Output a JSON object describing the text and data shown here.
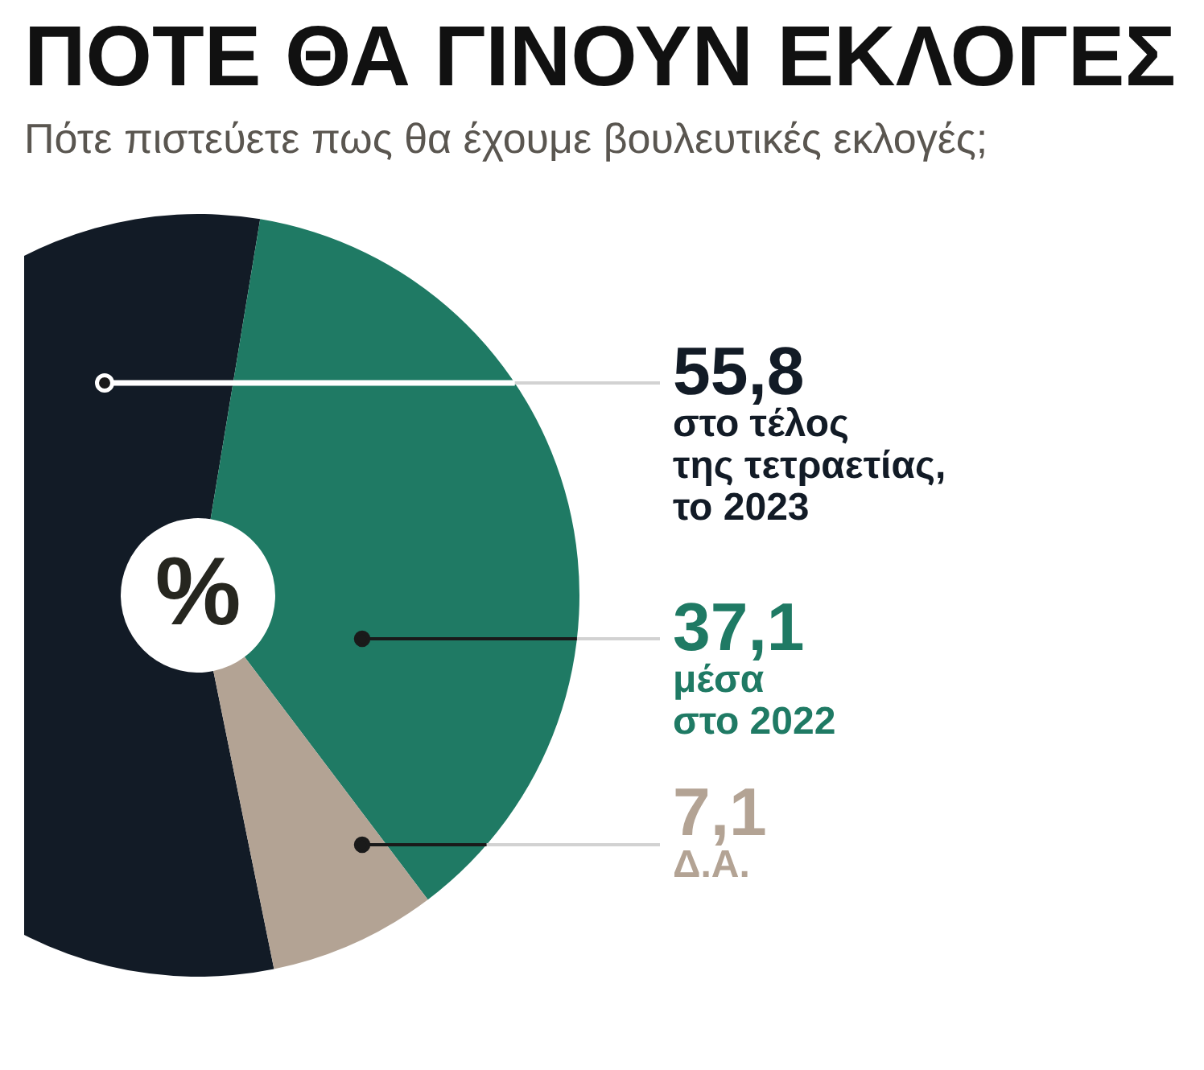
{
  "chart_data": {
    "type": "donut",
    "title": "ΠΟΤΕ ΘΑ ΓΙΝΟΥΝ ΕΚΛΟΓΕΣ",
    "subtitle": "Πότε πιστεύετε πως θα έχουμε βουλευτικές εκλογές;",
    "categories": [
      "στο τέλος\nτης τετραετίας,\nτο 2023",
      "μέσα\nστο 2022",
      "Δ.Α."
    ],
    "values": [
      55.8,
      37.1,
      7.1
    ],
    "colors": [
      "#121b26",
      "#1f7a64",
      "#b3a394"
    ],
    "value_labels": [
      "55,8",
      "37,1",
      "7,1"
    ],
    "annotations": [
      "%"
    ]
  }
}
